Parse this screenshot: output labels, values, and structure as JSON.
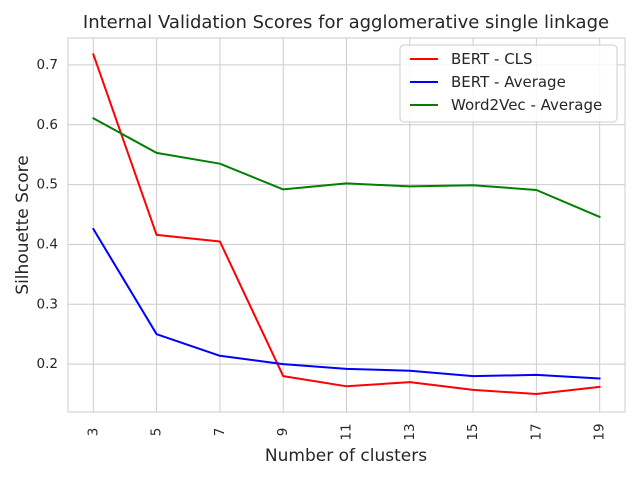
{
  "chart_data": {
    "type": "line",
    "title": "Internal Validation Scores for agglomerative single linkage",
    "xlabel": "Number of clusters",
    "ylabel": "Silhouette Score",
    "x": [
      3,
      5,
      7,
      9,
      11,
      13,
      15,
      17,
      19
    ],
    "x_tick_labels": [
      "3",
      "5",
      "7",
      "9",
      "11",
      "13",
      "15",
      "17",
      "19"
    ],
    "y_ticks": [
      0.2,
      0.3,
      0.4,
      0.5,
      0.6,
      0.7
    ],
    "y_tick_labels": [
      "0.2",
      "0.3",
      "0.4",
      "0.5",
      "0.6",
      "0.7"
    ],
    "xlim": [
      2.2,
      19.8
    ],
    "ylim": [
      0.12,
      0.745
    ],
    "grid": true,
    "legend_position": "top-right",
    "series": [
      {
        "name": "BERT - CLS",
        "color": "#ff0000",
        "values": [
          0.718,
          0.416,
          0.405,
          0.18,
          0.163,
          0.17,
          0.157,
          0.15,
          0.162
        ]
      },
      {
        "name": "BERT - Average",
        "color": "#0000ff",
        "values": [
          0.426,
          0.25,
          0.214,
          0.2,
          0.192,
          0.189,
          0.18,
          0.182,
          0.176
        ]
      },
      {
        "name": "Word2Vec - Average",
        "color": "#008000",
        "values": [
          0.611,
          0.553,
          0.535,
          0.492,
          0.502,
          0.497,
          0.499,
          0.491,
          0.446
        ]
      }
    ]
  }
}
